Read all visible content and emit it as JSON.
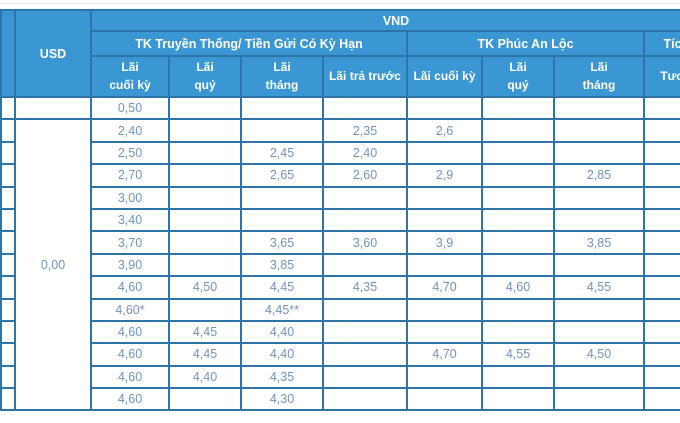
{
  "table": {
    "usd_header": "USD",
    "vnd_header": "VND",
    "groups": [
      {
        "label": "TK Truyền Thống/ Tiền Gửi Có Kỳ Hạn"
      },
      {
        "label": "TK Phúc An Lộc"
      },
      {
        "label": "Tíc"
      }
    ],
    "subheaders": [
      "Lãi\ncuối kỳ",
      "Lãi\nquý",
      "Lãi\ntháng",
      "Lãi trả trước",
      "Lãi cuối kỳ",
      "Lãi\nquý",
      "Lãi\ntháng",
      "Tươ"
    ],
    "usd_column": {
      "first_row_value": "",
      "merged_value": "0,00",
      "merged_row_span": 13
    },
    "rows": [
      {
        "trad": [
          "0,50",
          "",
          "",
          ""
        ],
        "phuc": [
          "",
          "",
          ""
        ],
        "extra": ""
      },
      {
        "trad": [
          "2,40",
          "",
          "",
          "2,35"
        ],
        "phuc": [
          "2,6",
          "",
          ""
        ],
        "extra": ""
      },
      {
        "trad": [
          "2,50",
          "",
          "2,45",
          "2,40"
        ],
        "phuc": [
          "",
          "",
          ""
        ],
        "extra": ""
      },
      {
        "trad": [
          "2,70",
          "",
          "2,65",
          "2,60"
        ],
        "phuc": [
          "2,9",
          "",
          "2,85"
        ],
        "extra": ""
      },
      {
        "trad": [
          "3,00",
          "",
          "",
          ""
        ],
        "phuc": [
          "",
          "",
          ""
        ],
        "extra": ""
      },
      {
        "trad": [
          "3,40",
          "",
          "",
          ""
        ],
        "phuc": [
          "",
          "",
          ""
        ],
        "extra": ""
      },
      {
        "trad": [
          "3,70",
          "",
          "3,65",
          "3,60"
        ],
        "phuc": [
          "3,9",
          "",
          "3,85"
        ],
        "extra": ""
      },
      {
        "trad": [
          "3,90",
          "",
          "3,85",
          ""
        ],
        "phuc": [
          "",
          "",
          ""
        ],
        "extra": ""
      },
      {
        "trad": [
          "4,60",
          "4,50",
          "4,45",
          "4,35"
        ],
        "phuc": [
          "4,70",
          "4,60",
          "4,55"
        ],
        "extra": ""
      },
      {
        "trad": [
          "4,60*",
          "",
          "4,45**",
          ""
        ],
        "phuc": [
          "",
          "",
          ""
        ],
        "extra": ""
      },
      {
        "trad": [
          "4,60",
          "4,45",
          "4,40",
          ""
        ],
        "phuc": [
          "",
          "",
          ""
        ],
        "extra": ""
      },
      {
        "trad": [
          "4,60",
          "4,45",
          "4,40",
          ""
        ],
        "phuc": [
          "4,70",
          "4,55",
          "4,50"
        ],
        "extra": ""
      },
      {
        "trad": [
          "4,60",
          "4,40",
          "4,35",
          ""
        ],
        "phuc": [
          "",
          "",
          ""
        ],
        "extra": ""
      },
      {
        "trad": [
          "4,60",
          "",
          "4,30",
          ""
        ],
        "phuc": [
          "",
          "",
          ""
        ],
        "extra": ""
      }
    ],
    "colors": {
      "header_bg": "#3b97d3",
      "border": "#2d74a8",
      "data_text": "#7293bb",
      "header_text": "#ffffff"
    }
  }
}
